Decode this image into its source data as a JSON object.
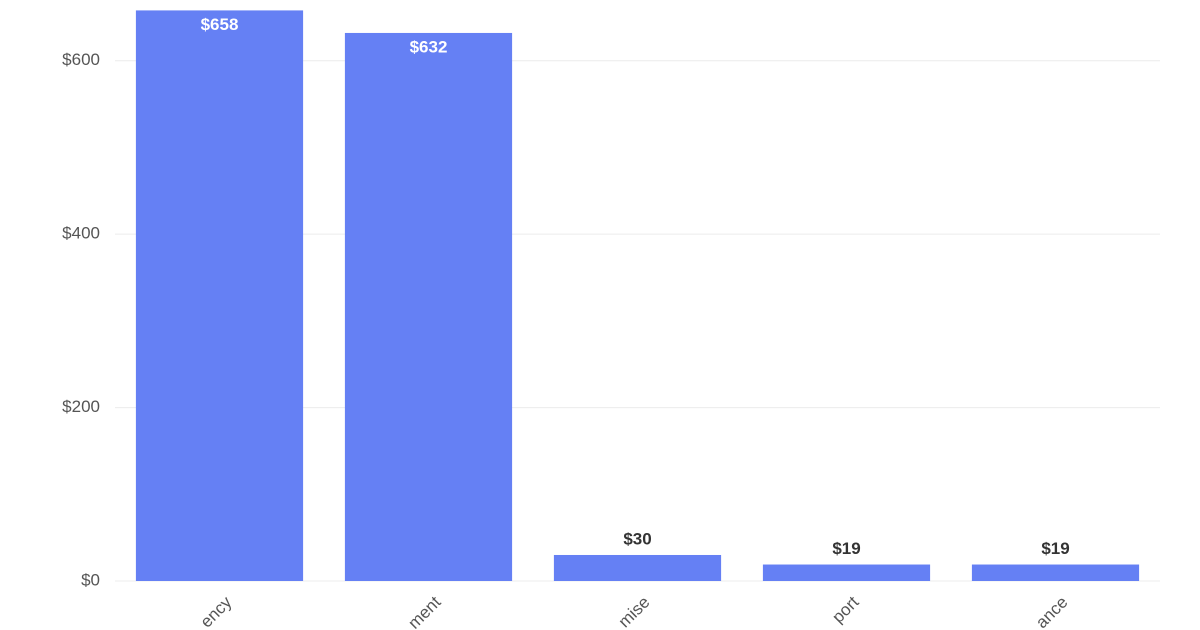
{
  "chart_data": {
    "type": "bar",
    "categories": [
      "ency",
      "ment",
      "mise",
      "port",
      "ance"
    ],
    "values": [
      658,
      632,
      30,
      19,
      19
    ],
    "value_labels": [
      "$658",
      "$632",
      "$30",
      "$19",
      "$19"
    ],
    "color": "#6580f4",
    "ylim": [
      0,
      670
    ],
    "yticks": [
      {
        "value": 0,
        "label": "$0"
      },
      {
        "value": 200,
        "label": "$200"
      },
      {
        "value": 400,
        "label": "$400"
      },
      {
        "value": 600,
        "label": "$600"
      }
    ],
    "grid": true
  }
}
